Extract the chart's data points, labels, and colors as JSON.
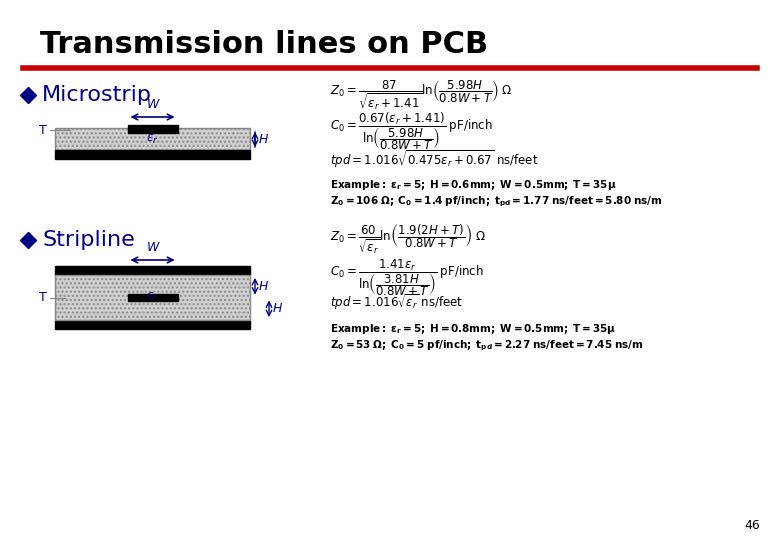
{
  "title": "Transmission lines on PCB",
  "title_fontsize": 22,
  "title_color": "#000000",
  "title_bold": true,
  "red_line_color": "#cc0000",
  "bullet_color": "#00008B",
  "bullet1_label": "Microstrip",
  "bullet2_label": "Stripline",
  "label_fontsize": 16,
  "dim_color": "#000080",
  "background_color": "#ffffff",
  "page_number": "46",
  "microstrip_formulas": [
    "Z_0 = \\frac{87}{\\sqrt{\\varepsilon_r + 1.41}}\\ln\\!\\left(\\frac{5.98H}{0.8W+T}\\right) \\; \\Omega",
    "C_0 = \\frac{0.67(\\varepsilon_r+1.41)}{\\ln\\!\\left(\\dfrac{5.98H}{0.8W+T}\\right)} \\; \\mathrm{pF/inch}",
    "tpd = 1.016\\sqrt{0.475\\varepsilon_r + 0.67} \\; \\mathrm{ns/feet}"
  ],
  "microstrip_example": [
    "\\mathbf{Example: \\varepsilon_r = 5; \\; H=0.6mm; \\; W=0.5mm; T=35\\mu}",
    "\\mathbf{Z_0=106 \\; \\Omega; \\; C_0=1.4 \\; pf/inch; \\; t_{pd}=1.77 \\; ns/feet=5.80 \\; ns/m}"
  ],
  "stripline_formulas": [
    "Z_0 = \\frac{60}{\\sqrt{\\varepsilon_r}}\\ln\\!\\left(\\frac{1.9(2H+T)}{0.8W+T}\\right) \\; \\Omega",
    "C_0 = \\frac{1.41\\varepsilon_r}{\\ln\\!\\left(\\dfrac{3.81H}{0.8W+T}\\right)} \\; \\mathrm{pF/inch}",
    "tpd = 1.016\\sqrt{\\varepsilon_r} \\; \\mathrm{ns/feet}"
  ],
  "stripline_example": [
    "\\mathbf{Example: \\varepsilon_r = 5; \\; H=0.8mm; \\; W=0.5mm; T=35\\mu}",
    "\\mathbf{Z_0=53 \\; \\Omega; \\; C_0=5 \\; pf/inch; \\; t_{pd}=2.27 \\; ns/feet=7.45 \\; ns/m}"
  ]
}
